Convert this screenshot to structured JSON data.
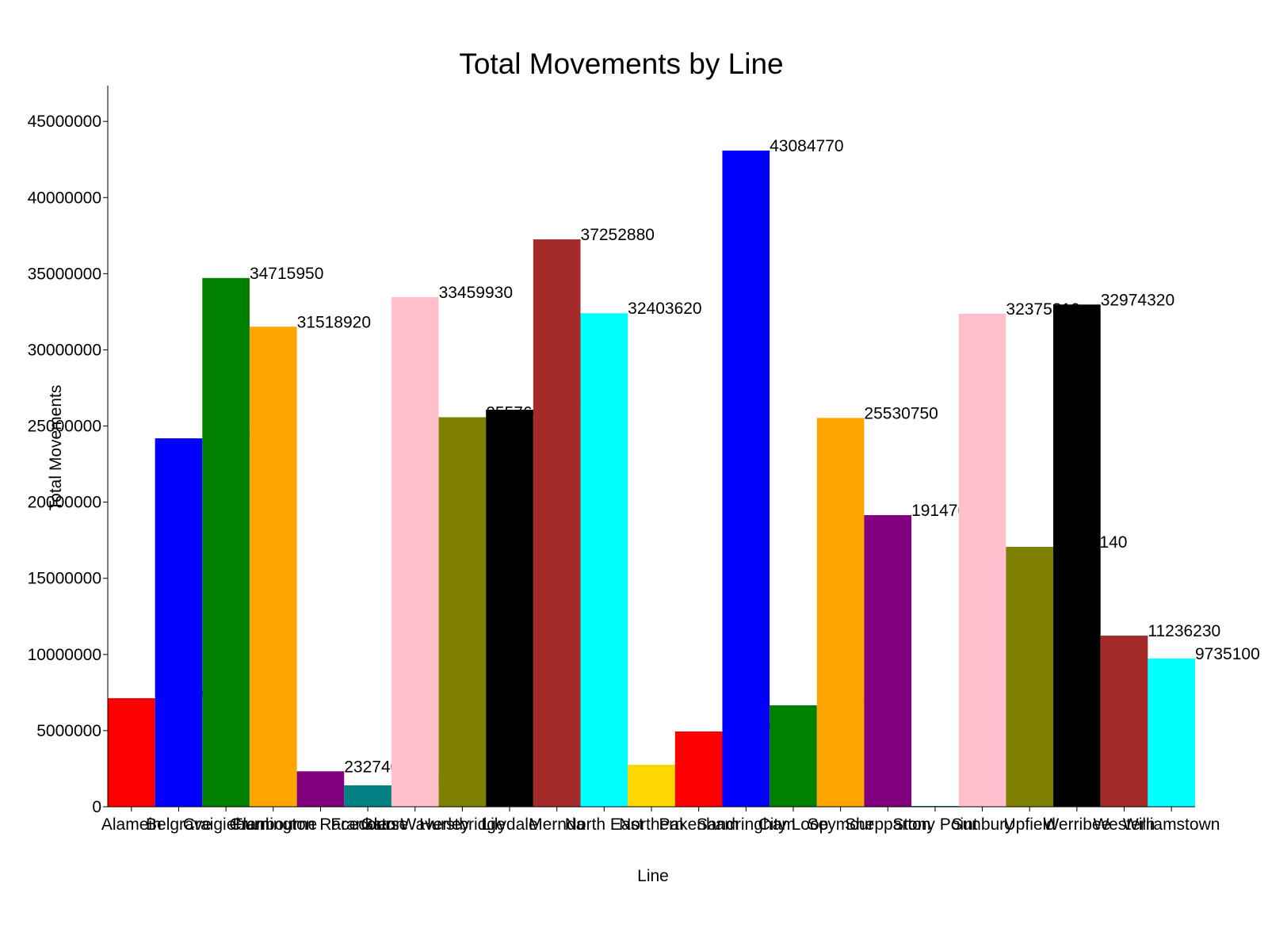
{
  "chart_data": {
    "type": "bar",
    "title": "Total Movements by Line",
    "x_label": "Line",
    "y_label": "Total Movements",
    "categories": [
      "Alamein",
      "Belgrave",
      "Craigieburn",
      "Cranbourne",
      "Flemington Racecourse",
      "Frankston",
      "Glen Waverley",
      "Hurstbridge",
      "Lilydale",
      "Mernda",
      "North East",
      "Northern",
      "Pakenham",
      "Sandringham",
      "City Loop",
      "Seymour",
      "Shepparton",
      "Stony Point",
      "Sunbury",
      "Upfield",
      "Werribee",
      "Western",
      "Williamstown"
    ],
    "values": [
      7128000,
      24190000,
      34715950,
      31518920,
      2327400,
      1405000,
      33459930,
      25576000,
      26070000,
      37252880,
      32403620,
      2758000,
      4943000,
      43084770,
      6660000,
      25530750,
      19147000,
      52000,
      32375810,
      17067140,
      32974320,
      11236230,
      9735100
    ],
    "colors": [
      "#ff0000",
      "#0000ff",
      "#008000",
      "#ffa500",
      "#800080",
      "#008080",
      "#ffc0cb",
      "#808000",
      "#000000",
      "#a52a2a",
      "#00ffff",
      "#ffd700",
      "#ff0000",
      "#0000ff",
      "#008000",
      "#ffa500",
      "#800080",
      "#008080",
      "#ffc0cb",
      "#808000",
      "#000000",
      "#a52a2a",
      "#00ffff"
    ],
    "ylim": [
      0,
      47350000
    ],
    "yticks": [
      0,
      5000000,
      10000000,
      15000000,
      20000000,
      25000000,
      30000000,
      35000000,
      40000000,
      45000000
    ],
    "grid": false
  }
}
